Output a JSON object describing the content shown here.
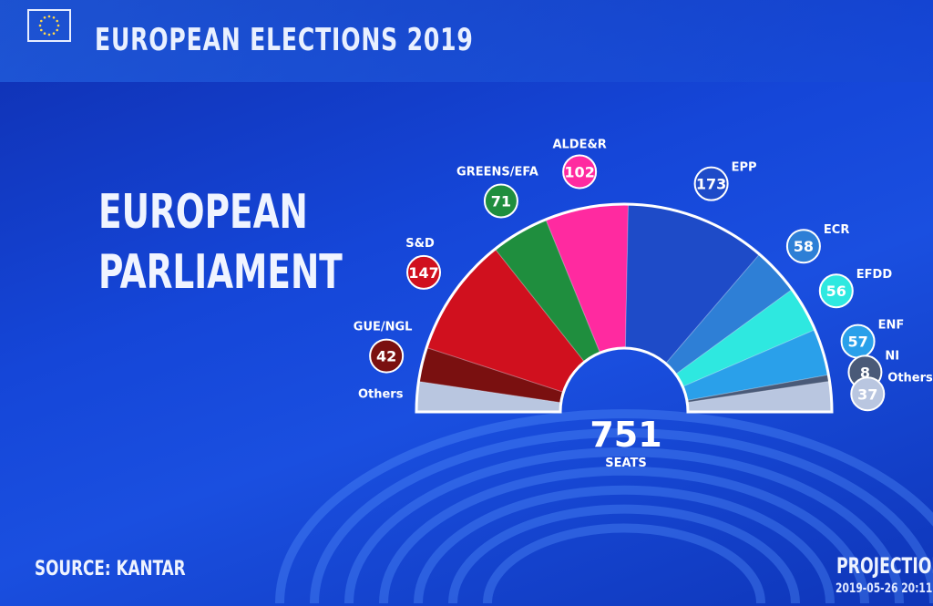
{
  "header": {
    "title": "EUROPEAN ELECTIONS 2019"
  },
  "main": {
    "heading_line1": "EUROPEAN",
    "heading_line2": "PARLIAMENT"
  },
  "footer": {
    "source": "SOURCE: KANTAR",
    "projection": "PROJECTION",
    "timestamp": "2019-05-26 20:11"
  },
  "colors": {
    "background": "#1546d8",
    "gue_ngl": "#7a1010",
    "sd": "#d0101e",
    "greens_efa": "#1f8e3e",
    "alde_r": "#ff2aa0",
    "epp": "#1e4bc8",
    "ecr": "#2e7fd6",
    "efdd": "#2ee8e0",
    "enf": "#2aa0ea",
    "ni": "#4a5a78",
    "others": "#b9c6e0"
  },
  "chart_data": {
    "type": "hemicycle",
    "total_seats": 751,
    "total_label": "751",
    "total_sublabel": "SEATS",
    "parties": [
      {
        "name": "Others",
        "seats": 37,
        "side": "left",
        "color": "#b9c6e0",
        "show_badge": false
      },
      {
        "name": "GUE/NGL",
        "seats": 42,
        "color": "#7a1010"
      },
      {
        "name": "S&D",
        "seats": 147,
        "color": "#d0101e"
      },
      {
        "name": "GREENS/EFA",
        "seats": 71,
        "color": "#1f8e3e"
      },
      {
        "name": "ALDE&R",
        "seats": 102,
        "color": "#ff2aa0"
      },
      {
        "name": "EPP",
        "seats": 173,
        "color": "#1e4bc8"
      },
      {
        "name": "ECR",
        "seats": 58,
        "color": "#2e7fd6"
      },
      {
        "name": "EFDD",
        "seats": 56,
        "color": "#2ee8e0"
      },
      {
        "name": "ENF",
        "seats": 57,
        "color": "#2aa0ea"
      },
      {
        "name": "NI",
        "seats": 8,
        "color": "#4a5a78"
      },
      {
        "name": "Others",
        "seats": 37,
        "side": "right",
        "color": "#b9c6e0"
      }
    ]
  }
}
